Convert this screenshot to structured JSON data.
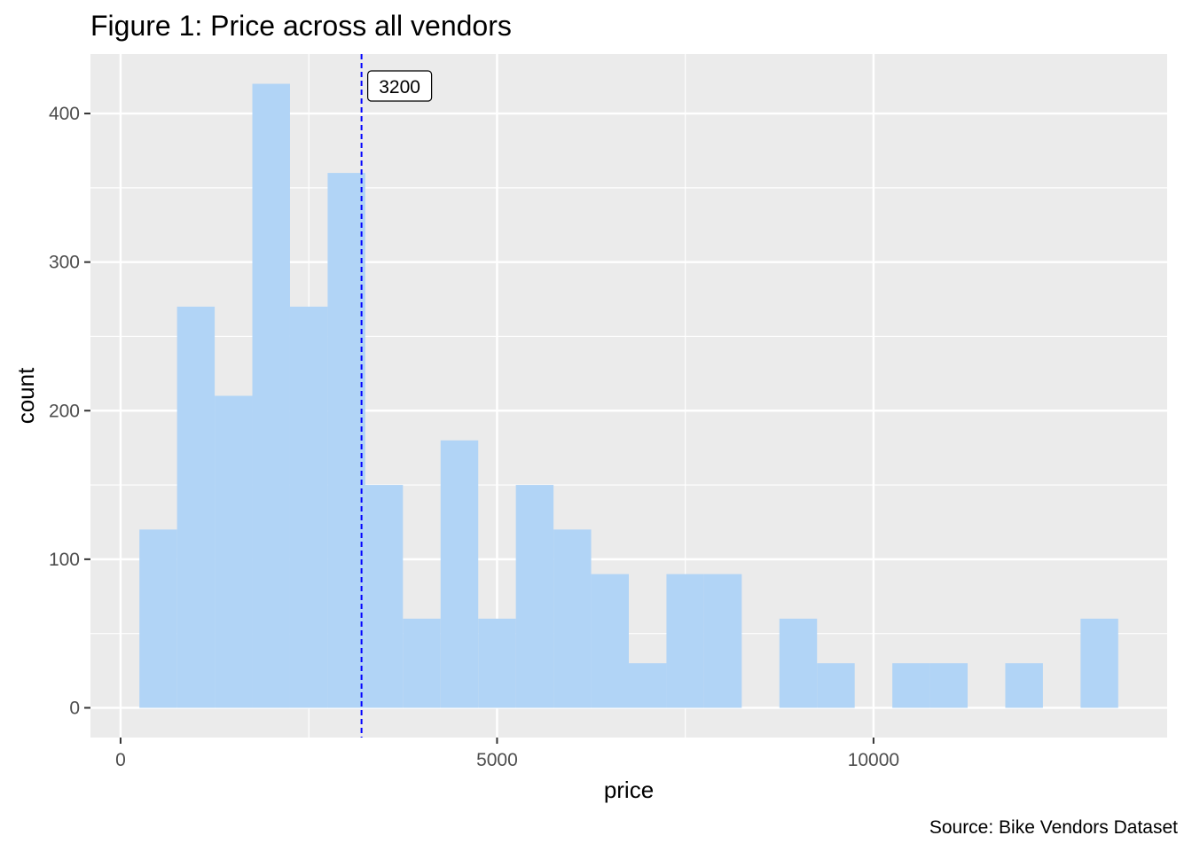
{
  "chart_data": {
    "type": "bar",
    "subtype": "histogram",
    "title": "Figure 1: Price across all vendors",
    "xlabel": "price",
    "ylabel": "count",
    "caption": "Source: Bike Vendors Dataset",
    "xlim": [
      -400,
      13900
    ],
    "ylim": [
      -20,
      440
    ],
    "x_ticks": [
      0,
      5000,
      10000
    ],
    "x_tick_labels": [
      "0",
      "5000",
      "10000"
    ],
    "y_ticks": [
      0,
      100,
      200,
      300,
      400
    ],
    "y_tick_labels": [
      "0",
      "100",
      "200",
      "300",
      "400"
    ],
    "grid": true,
    "bin_width": 500,
    "bins": [
      {
        "x0": 250,
        "x1": 750,
        "count": 120
      },
      {
        "x0": 750,
        "x1": 1250,
        "count": 270
      },
      {
        "x0": 1250,
        "x1": 1750,
        "count": 210
      },
      {
        "x0": 1750,
        "x1": 2250,
        "count": 420
      },
      {
        "x0": 2250,
        "x1": 2750,
        "count": 270
      },
      {
        "x0": 2750,
        "x1": 3250,
        "count": 360
      },
      {
        "x0": 3250,
        "x1": 3750,
        "count": 150
      },
      {
        "x0": 3750,
        "x1": 4250,
        "count": 60
      },
      {
        "x0": 4250,
        "x1": 4750,
        "count": 180
      },
      {
        "x0": 4750,
        "x1": 5250,
        "count": 60
      },
      {
        "x0": 5250,
        "x1": 5750,
        "count": 150
      },
      {
        "x0": 5750,
        "x1": 6250,
        "count": 120
      },
      {
        "x0": 6250,
        "x1": 6750,
        "count": 90
      },
      {
        "x0": 6750,
        "x1": 7250,
        "count": 30
      },
      {
        "x0": 7250,
        "x1": 7750,
        "count": 90
      },
      {
        "x0": 7750,
        "x1": 8250,
        "count": 90
      },
      {
        "x0": 8250,
        "x1": 8750,
        "count": 0
      },
      {
        "x0": 8750,
        "x1": 9250,
        "count": 60
      },
      {
        "x0": 9250,
        "x1": 9750,
        "count": 30
      },
      {
        "x0": 9750,
        "x1": 10250,
        "count": 0
      },
      {
        "x0": 10250,
        "x1": 10750,
        "count": 30
      },
      {
        "x0": 10750,
        "x1": 11250,
        "count": 30
      },
      {
        "x0": 11250,
        "x1": 11750,
        "count": 0
      },
      {
        "x0": 11750,
        "x1": 12250,
        "count": 30
      },
      {
        "x0": 12250,
        "x1": 12750,
        "count": 0
      },
      {
        "x0": 12750,
        "x1": 13250,
        "count": 60
      }
    ],
    "reference_line": {
      "x": 3200,
      "label": "3200",
      "color": "#0000ff",
      "style": "dashed"
    },
    "colors": {
      "bar_fill": "#b1d4f6",
      "panel_background": "#ebebeb",
      "grid_line": "#ffffff",
      "text": "#000000",
      "tick_text": "#4d4d4d",
      "tick_mark": "#333333"
    }
  }
}
